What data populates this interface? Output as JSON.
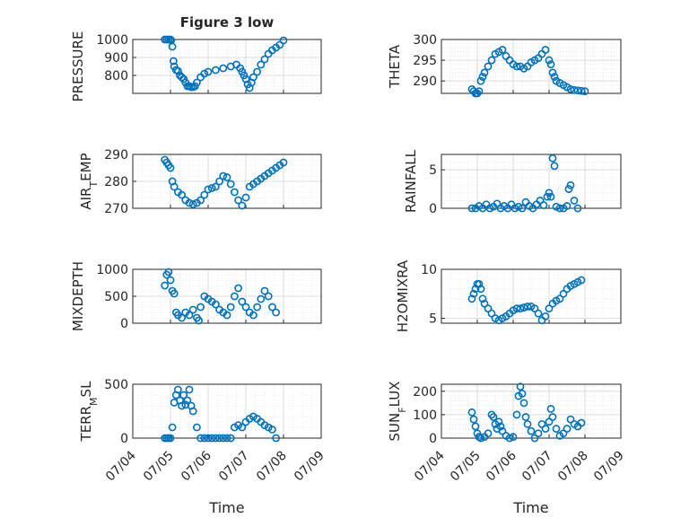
{
  "figure": {
    "x_date_labels": [
      "07/04",
      "07/05",
      "07/06",
      "07/07",
      "07/08",
      "07/09"
    ],
    "marker_color": "#0072BD"
  },
  "chart_data": [
    {
      "type": "scatter",
      "title": "Figure 3 low",
      "ylabel": "PRESSURE",
      "xlabel": "",
      "ylim": [
        700,
        1000
      ],
      "yticks": [
        800,
        900,
        1000
      ],
      "xlim": [
        0,
        5
      ],
      "grid": true,
      "x": [
        0.85,
        0.9,
        0.95,
        1.0,
        1.02,
        1.05,
        1.08,
        1.1,
        1.15,
        1.2,
        1.25,
        1.3,
        1.35,
        1.4,
        1.45,
        1.5,
        1.55,
        1.6,
        1.65,
        1.7,
        1.8,
        1.9,
        2.0,
        2.2,
        2.4,
        2.6,
        2.75,
        2.85,
        2.9,
        2.95,
        3.0,
        3.05,
        3.1,
        3.15,
        3.2,
        3.3,
        3.4,
        3.5,
        3.6,
        3.7,
        3.8,
        3.9,
        4.0
      ],
      "y": [
        1000,
        1000,
        1000,
        1000,
        995,
        960,
        880,
        850,
        830,
        825,
        800,
        790,
        780,
        760,
        740,
        740,
        735,
        735,
        740,
        760,
        790,
        810,
        820,
        830,
        840,
        850,
        860,
        840,
        820,
        800,
        780,
        750,
        730,
        760,
        790,
        820,
        860,
        890,
        920,
        940,
        955,
        970,
        995
      ]
    },
    {
      "type": "scatter",
      "title": "",
      "ylabel": "THETA",
      "xlabel": "",
      "ylim": [
        287,
        300
      ],
      "yticks": [
        290,
        295,
        300
      ],
      "xlim": [
        0,
        5
      ],
      "grid": true,
      "x": [
        0.85,
        0.9,
        0.95,
        1.0,
        1.05,
        1.1,
        1.15,
        1.2,
        1.3,
        1.4,
        1.5,
        1.6,
        1.7,
        1.8,
        1.9,
        2.0,
        2.1,
        2.2,
        2.3,
        2.4,
        2.5,
        2.6,
        2.7,
        2.8,
        2.9,
        3.0,
        3.05,
        3.1,
        3.15,
        3.2,
        3.3,
        3.4,
        3.5,
        3.6,
        3.7,
        3.8,
        3.9,
        4.0
      ],
      "y": [
        288,
        287.5,
        287,
        287,
        287.5,
        290,
        291,
        292,
        293.5,
        295,
        296.5,
        297,
        297.5,
        296,
        295,
        294,
        293.5,
        293.5,
        293,
        293.5,
        294.5,
        295,
        295.5,
        296.5,
        297.5,
        295,
        294,
        292,
        291,
        290,
        289.5,
        289,
        288.5,
        288,
        287.8,
        287.7,
        287.6,
        287.5
      ]
    },
    {
      "type": "scatter",
      "title": "",
      "ylabel": "AIR_TEMP",
      "xlabel": "",
      "ylim": [
        270,
        290
      ],
      "yticks": [
        270,
        280,
        290
      ],
      "xlim": [
        0,
        5
      ],
      "grid": true,
      "x": [
        0.85,
        0.9,
        0.95,
        1.0,
        1.05,
        1.1,
        1.2,
        1.3,
        1.4,
        1.5,
        1.6,
        1.7,
        1.8,
        1.9,
        2.0,
        2.1,
        2.2,
        2.3,
        2.4,
        2.5,
        2.6,
        2.7,
        2.8,
        2.9,
        3.0,
        3.1,
        3.2,
        3.3,
        3.4,
        3.5,
        3.6,
        3.7,
        3.8,
        3.9,
        4.0
      ],
      "y": [
        288,
        287,
        286,
        285,
        280,
        278,
        276,
        275,
        273,
        272,
        271.5,
        272,
        273,
        275,
        277,
        277.5,
        278,
        280,
        282,
        281.5,
        279,
        276,
        273,
        271,
        274,
        278,
        279,
        280,
        281,
        282,
        283,
        284,
        285,
        286,
        287
      ]
    },
    {
      "type": "scatter",
      "title": "",
      "ylabel": "RAINFALL",
      "xlabel": "",
      "ylim": [
        0,
        7
      ],
      "yticks": [
        0,
        5
      ],
      "xlim": [
        0,
        5
      ],
      "grid": true,
      "x": [
        0.85,
        0.95,
        1.05,
        1.15,
        1.25,
        1.35,
        1.45,
        1.55,
        1.65,
        1.75,
        1.85,
        1.95,
        2.05,
        2.15,
        2.25,
        2.35,
        2.45,
        2.55,
        2.65,
        2.75,
        2.85,
        2.95,
        3.0,
        3.05,
        3.1,
        3.15,
        3.2,
        3.3,
        3.4,
        3.5,
        3.55,
        3.6,
        3.7,
        3.8
      ],
      "y": [
        0,
        0,
        0.3,
        0,
        0.5,
        0,
        0.2,
        0.6,
        0,
        0.3,
        0,
        0.5,
        0,
        0.2,
        0,
        0.8,
        0.3,
        0,
        0.5,
        1.0,
        0.4,
        1.5,
        2.0,
        1.5,
        6.5,
        5.5,
        0.2,
        0,
        0,
        0.3,
        2.5,
        3.0,
        1.0,
        0
      ]
    },
    {
      "type": "scatter",
      "title": "",
      "ylabel": "MIXDEPTH",
      "xlabel": "",
      "ylim": [
        0,
        1000
      ],
      "yticks": [
        0,
        500,
        1000
      ],
      "xlim": [
        0,
        5
      ],
      "grid": true,
      "x": [
        0.85,
        0.9,
        0.95,
        1.0,
        1.05,
        1.1,
        1.15,
        1.2,
        1.3,
        1.4,
        1.5,
        1.6,
        1.7,
        1.75,
        1.8,
        1.9,
        2.0,
        2.1,
        2.2,
        2.3,
        2.4,
        2.5,
        2.6,
        2.7,
        2.8,
        2.9,
        3.0,
        3.1,
        3.2,
        3.3,
        3.4,
        3.5,
        3.6,
        3.7,
        3.8
      ],
      "y": [
        700,
        900,
        950,
        800,
        600,
        550,
        200,
        150,
        100,
        200,
        150,
        250,
        100,
        50,
        300,
        500,
        450,
        400,
        350,
        250,
        200,
        150,
        300,
        500,
        650,
        400,
        300,
        200,
        150,
        300,
        450,
        600,
        500,
        300,
        200
      ]
    },
    {
      "type": "scatter",
      "title": "",
      "ylabel": "H2OMIXRA",
      "xlabel": "",
      "ylim": [
        4.5,
        10
      ],
      "yticks": [
        5,
        10
      ],
      "xlim": [
        0,
        5
      ],
      "grid": true,
      "x": [
        0.85,
        0.9,
        0.95,
        1.0,
        1.05,
        1.1,
        1.15,
        1.2,
        1.3,
        1.4,
        1.5,
        1.6,
        1.7,
        1.8,
        1.9,
        2.0,
        2.1,
        2.2,
        2.3,
        2.4,
        2.5,
        2.6,
        2.7,
        2.8,
        2.9,
        3.0,
        3.1,
        3.2,
        3.3,
        3.4,
        3.5,
        3.6,
        3.7,
        3.8,
        3.9
      ],
      "y": [
        7,
        7.5,
        8,
        8.5,
        8.5,
        8,
        7,
        6.5,
        6,
        5.5,
        5,
        4.8,
        5,
        5.2,
        5.5,
        5.8,
        6,
        6,
        6.1,
        6.2,
        6.2,
        6,
        5.5,
        4.8,
        5.2,
        6,
        6.5,
        6.8,
        7,
        7.5,
        8,
        8.3,
        8.5,
        8.7,
        8.9
      ]
    },
    {
      "type": "scatter",
      "title": "",
      "ylabel": "TERR_MSL",
      "xlabel": "Time",
      "ylim": [
        0,
        500
      ],
      "yticks": [
        0,
        500
      ],
      "xlim": [
        0,
        5
      ],
      "grid": true,
      "x": [
        0.85,
        0.9,
        0.95,
        1.0,
        1.05,
        1.1,
        1.15,
        1.2,
        1.25,
        1.3,
        1.35,
        1.4,
        1.45,
        1.5,
        1.55,
        1.6,
        1.7,
        1.8,
        1.9,
        2.0,
        2.1,
        2.2,
        2.3,
        2.4,
        2.5,
        2.6,
        2.7,
        2.8,
        2.9,
        3.0,
        3.1,
        3.2,
        3.3,
        3.4,
        3.5,
        3.6,
        3.7,
        3.8
      ],
      "y": [
        0,
        0,
        0,
        0,
        100,
        330,
        400,
        450,
        350,
        300,
        400,
        310,
        350,
        450,
        300,
        250,
        100,
        0,
        0,
        0,
        0,
        0,
        0,
        0,
        0,
        0,
        100,
        120,
        100,
        150,
        180,
        200,
        180,
        150,
        120,
        100,
        80,
        0
      ]
    },
    {
      "type": "scatter",
      "title": "",
      "ylabel": "SUN_FLUX",
      "xlabel": "Time",
      "ylim": [
        0,
        230
      ],
      "yticks": [
        0,
        100,
        200
      ],
      "xlim": [
        0,
        5
      ],
      "grid": true,
      "x": [
        0.85,
        0.9,
        0.95,
        1.0,
        1.05,
        1.1,
        1.2,
        1.3,
        1.4,
        1.45,
        1.5,
        1.55,
        1.6,
        1.65,
        1.7,
        1.8,
        1.9,
        2.0,
        2.1,
        2.15,
        2.2,
        2.25,
        2.3,
        2.35,
        2.4,
        2.5,
        2.6,
        2.7,
        2.8,
        2.9,
        3.0,
        3.05,
        3.1,
        3.2,
        3.3,
        3.4,
        3.5,
        3.6,
        3.7,
        3.8,
        3.9
      ],
      "y": [
        110,
        80,
        50,
        20,
        5,
        0,
        5,
        20,
        100,
        90,
        60,
        40,
        70,
        50,
        30,
        10,
        0,
        5,
        100,
        180,
        220,
        190,
        150,
        90,
        60,
        30,
        0,
        20,
        60,
        40,
        70,
        125,
        90,
        40,
        10,
        20,
        40,
        80,
        60,
        50,
        65
      ]
    }
  ]
}
